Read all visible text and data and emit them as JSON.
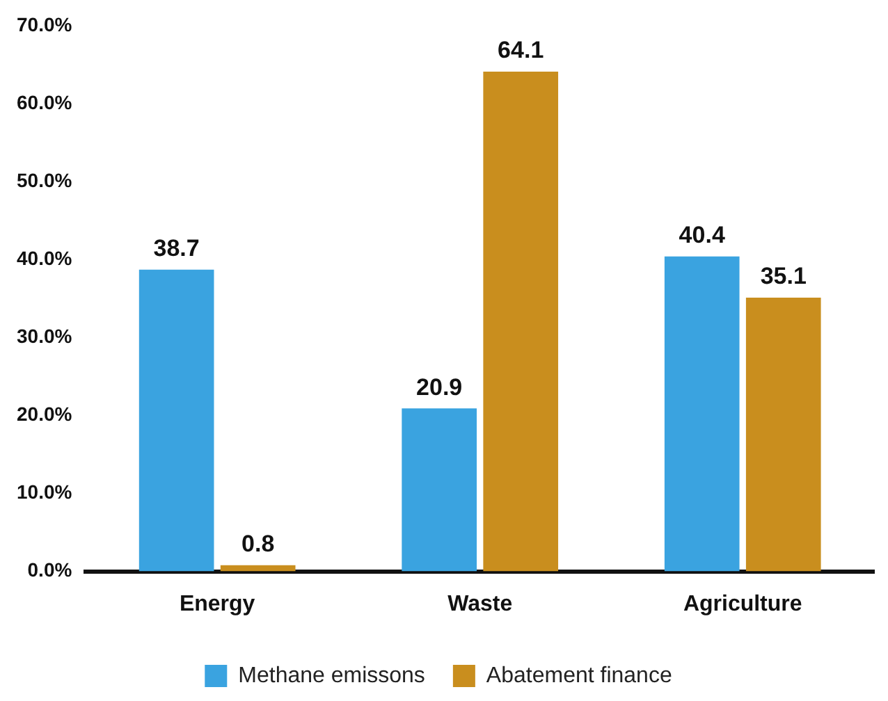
{
  "chart_data": {
    "type": "bar",
    "categories": [
      "Energy",
      "Waste",
      "Agriculture"
    ],
    "series": [
      {
        "name": "Methane emissons",
        "color": "#3aa3e0",
        "values": [
          38.7,
          20.9,
          40.4
        ]
      },
      {
        "name": "Abatement finance",
        "color": "#c98e1e",
        "values": [
          0.8,
          64.1,
          35.1
        ]
      }
    ],
    "ylim": [
      0,
      70
    ],
    "yticks": [
      {
        "value": 0,
        "label": "0.0%"
      },
      {
        "value": 10,
        "label": "10.0%"
      },
      {
        "value": 20,
        "label": "20.0%"
      },
      {
        "value": 30,
        "label": "30.0%"
      },
      {
        "value": 40,
        "label": "40.0%"
      },
      {
        "value": 50,
        "label": "50.0%"
      },
      {
        "value": 60,
        "label": "60.0%"
      },
      {
        "value": 70,
        "label": "70.0%"
      }
    ],
    "grid": false,
    "legend": "bottom",
    "data_labels": true
  }
}
